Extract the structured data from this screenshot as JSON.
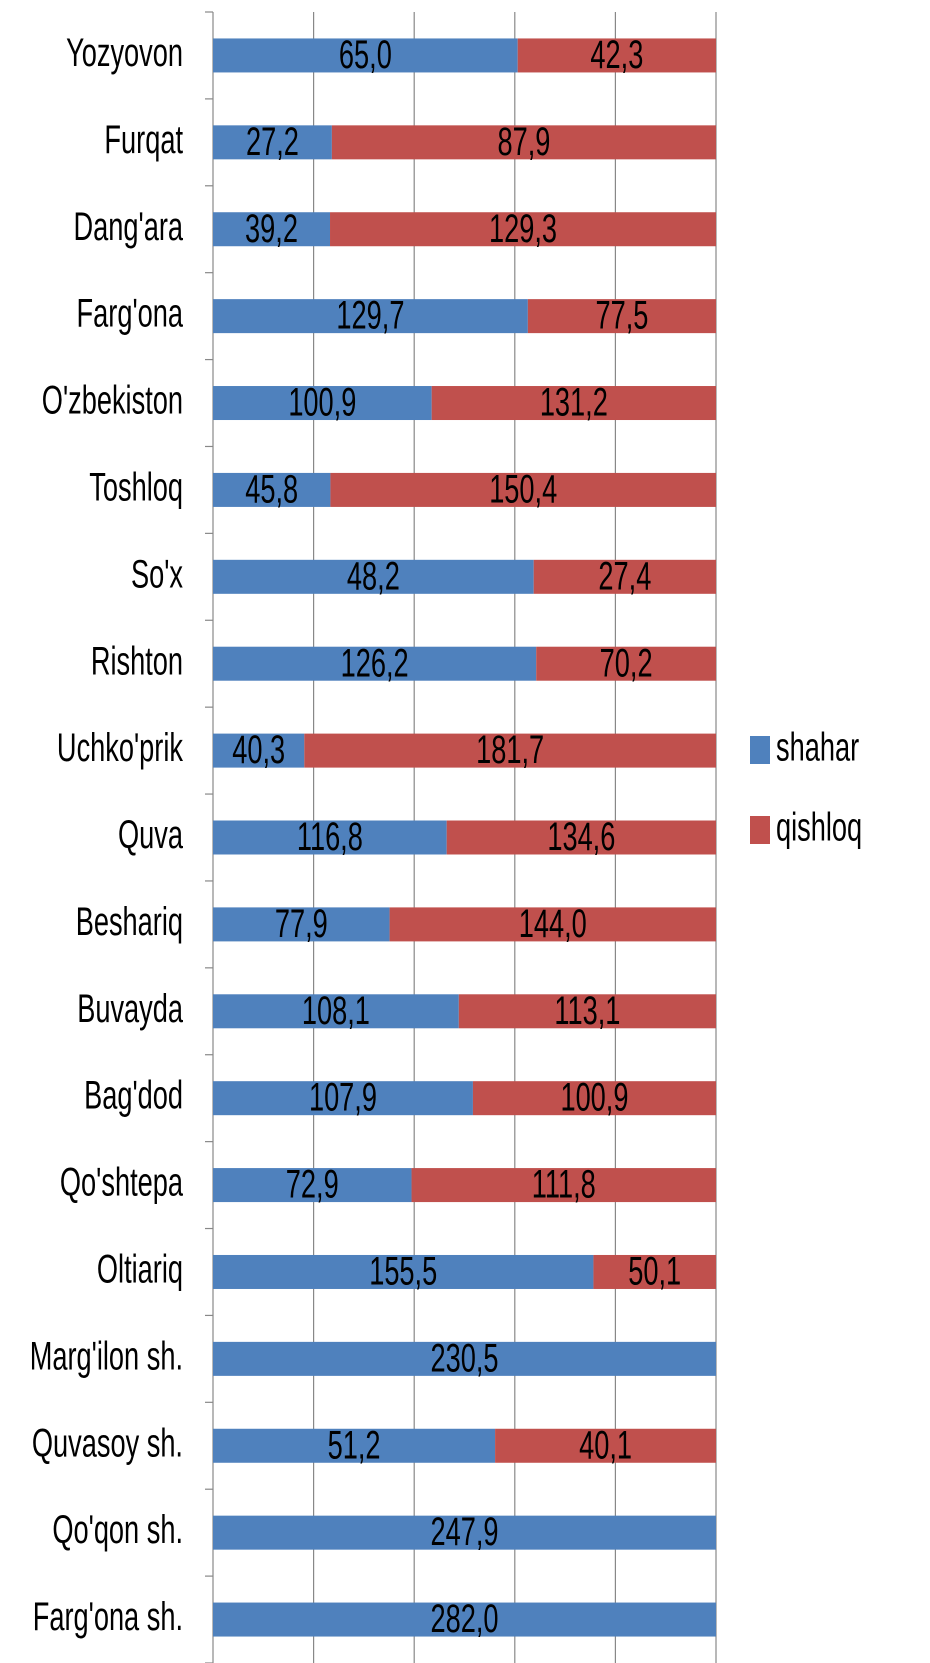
{
  "chart_data": {
    "type": "bar",
    "orientation": "horizontal",
    "stacking": "percent",
    "categories": [
      "Yozyovon",
      "Furqat",
      "Dang'ara",
      "Farg'ona",
      "O'zbekiston",
      "Toshloq",
      "So'x",
      "Rishton",
      "Uchko'prik",
      "Quva",
      "Beshariq",
      "Buvayda",
      "Bag'dod",
      "Qo'shtepa",
      "Oltiariq",
      "Marg'ilon sh.",
      "Quvasoy sh.",
      "Qo'qon sh.",
      "Farg'ona sh."
    ],
    "series": [
      {
        "name": "shahar",
        "color": "#4f81bd",
        "values": [
          65.0,
          27.2,
          39.2,
          129.7,
          100.9,
          45.8,
          48.2,
          126.2,
          40.3,
          116.8,
          77.9,
          108.1,
          107.9,
          72.9,
          155.5,
          230.5,
          51.2,
          247.9,
          282.0
        ],
        "value_labels": [
          "65,0",
          "27,2",
          "39,2",
          "129,7",
          "100,9",
          "45,8",
          "48,2",
          "126,2",
          "40,3",
          "116,8",
          "77,9",
          "108,1",
          "107,9",
          "72,9",
          "155,5",
          "230,5",
          "51,2",
          "247,9",
          "282,0"
        ]
      },
      {
        "name": "qishloq",
        "color": "#c0504d",
        "values": [
          42.3,
          87.9,
          129.3,
          77.5,
          131.2,
          150.4,
          27.4,
          70.2,
          181.7,
          134.6,
          144.0,
          113.1,
          100.9,
          111.8,
          50.1,
          null,
          40.1,
          null,
          null
        ],
        "value_labels": [
          "42,3",
          "87,9",
          "129,3",
          "77,5",
          "131,2",
          "150,4",
          "27,4",
          "70,2",
          "181,7",
          "134,6",
          "144,0",
          "113,1",
          "100,9",
          "111,8",
          "50,1",
          null,
          "40,1",
          null,
          null
        ]
      }
    ],
    "xlim": [
      0,
      100
    ],
    "xticks": [
      0,
      20,
      40,
      60,
      80,
      100
    ],
    "grid": true,
    "legend": "right"
  }
}
